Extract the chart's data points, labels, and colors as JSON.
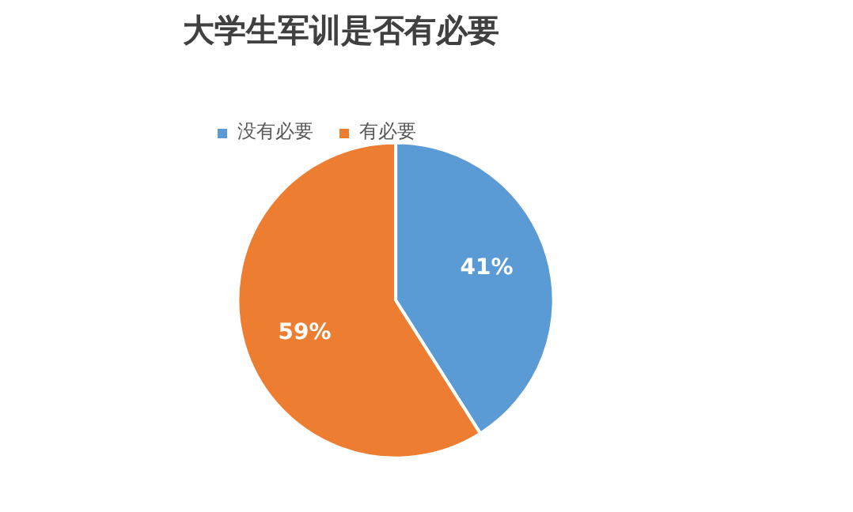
{
  "chart_data": {
    "type": "pie",
    "title": "大学生军训是否有必要",
    "categories": [
      "没有必要",
      "有必要"
    ],
    "values": [
      41,
      59
    ],
    "colors": [
      "#5b9bd5",
      "#ed7d31"
    ],
    "value_labels": [
      "41%",
      "59%"
    ],
    "legend": "top"
  }
}
